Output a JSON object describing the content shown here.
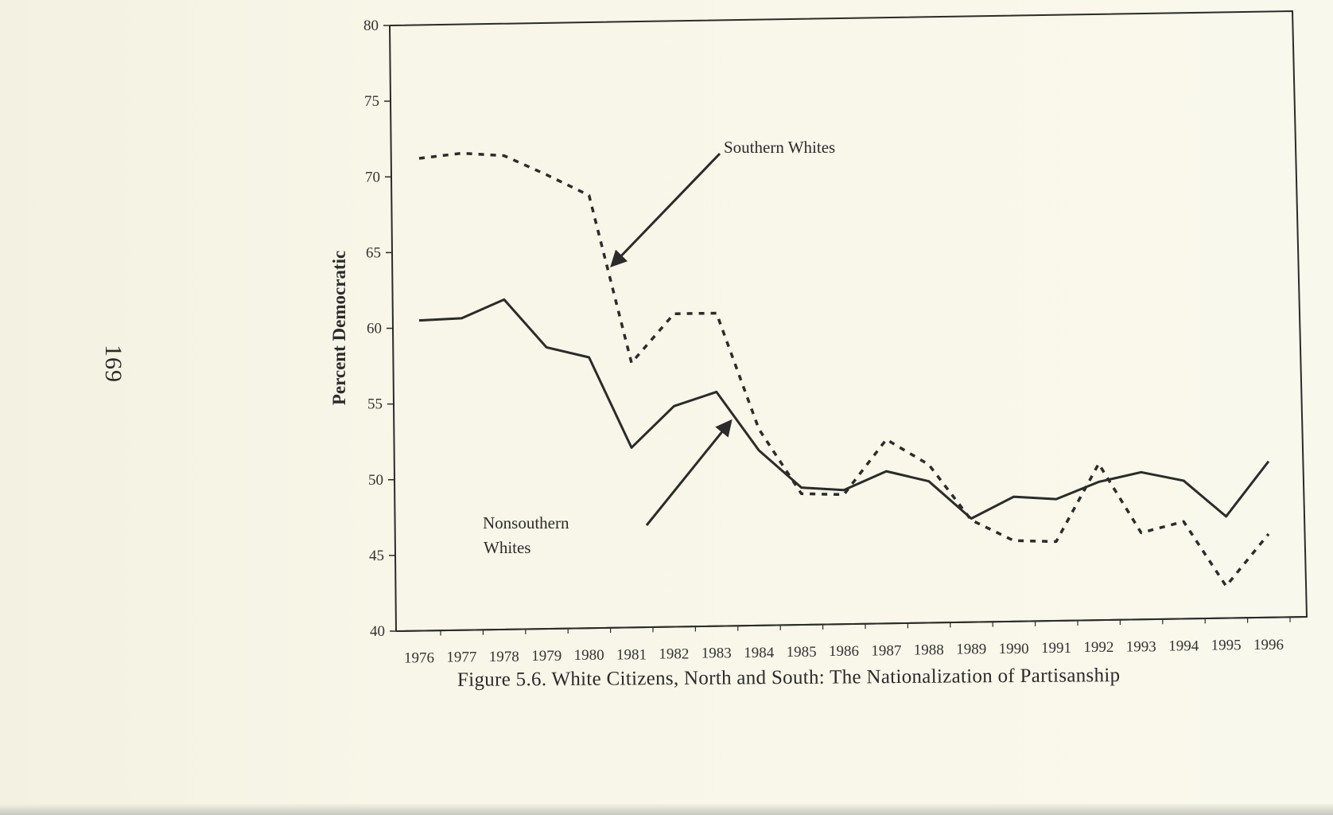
{
  "page_number": "169",
  "caption": "Figure 5.6. White Citizens, North and South: The Nationalization of Partisanship",
  "chart_data": {
    "type": "line",
    "title": "",
    "xlabel": "",
    "ylabel": "Percent Democratic",
    "ylim": [
      40,
      80
    ],
    "y_ticks": [
      "40",
      "45",
      "50",
      "55",
      "60",
      "65",
      "70",
      "75",
      "80"
    ],
    "categories": [
      "1976",
      "1977",
      "1978",
      "1979",
      "1980",
      "1981",
      "1982",
      "1983",
      "1984",
      "1985",
      "1986",
      "1987",
      "1988",
      "1989",
      "1990",
      "1991",
      "1992",
      "1993",
      "1994",
      "1995",
      "1996"
    ],
    "series": [
      {
        "name": "Southern Whites",
        "style": "dashed",
        "color": "#2b2b2b",
        "values": [
          71.2,
          71.5,
          71.3,
          70.0,
          68.6,
          57.5,
          60.7,
          60.7,
          53.0,
          48.7,
          48.6,
          52.2,
          50.5,
          46.8,
          45.4,
          45.3,
          50.4,
          45.8,
          46.5,
          42.2,
          45.6
        ]
      },
      {
        "name": "Nonsouthern Whites",
        "style": "solid",
        "color": "#2b2b2b",
        "values": [
          60.5,
          60.6,
          61.8,
          58.6,
          57.9,
          51.9,
          54.6,
          55.5,
          51.6,
          49.1,
          48.9,
          50.1,
          49.4,
          46.9,
          48.3,
          48.1,
          49.2,
          49.8,
          49.2,
          46.8,
          50.4
        ]
      }
    ],
    "annotations": [
      {
        "text": "Southern Whites"
      },
      {
        "text": "Nonsouthern"
      },
      {
        "text": "Whites"
      }
    ],
    "grid": false,
    "legend": "none"
  }
}
